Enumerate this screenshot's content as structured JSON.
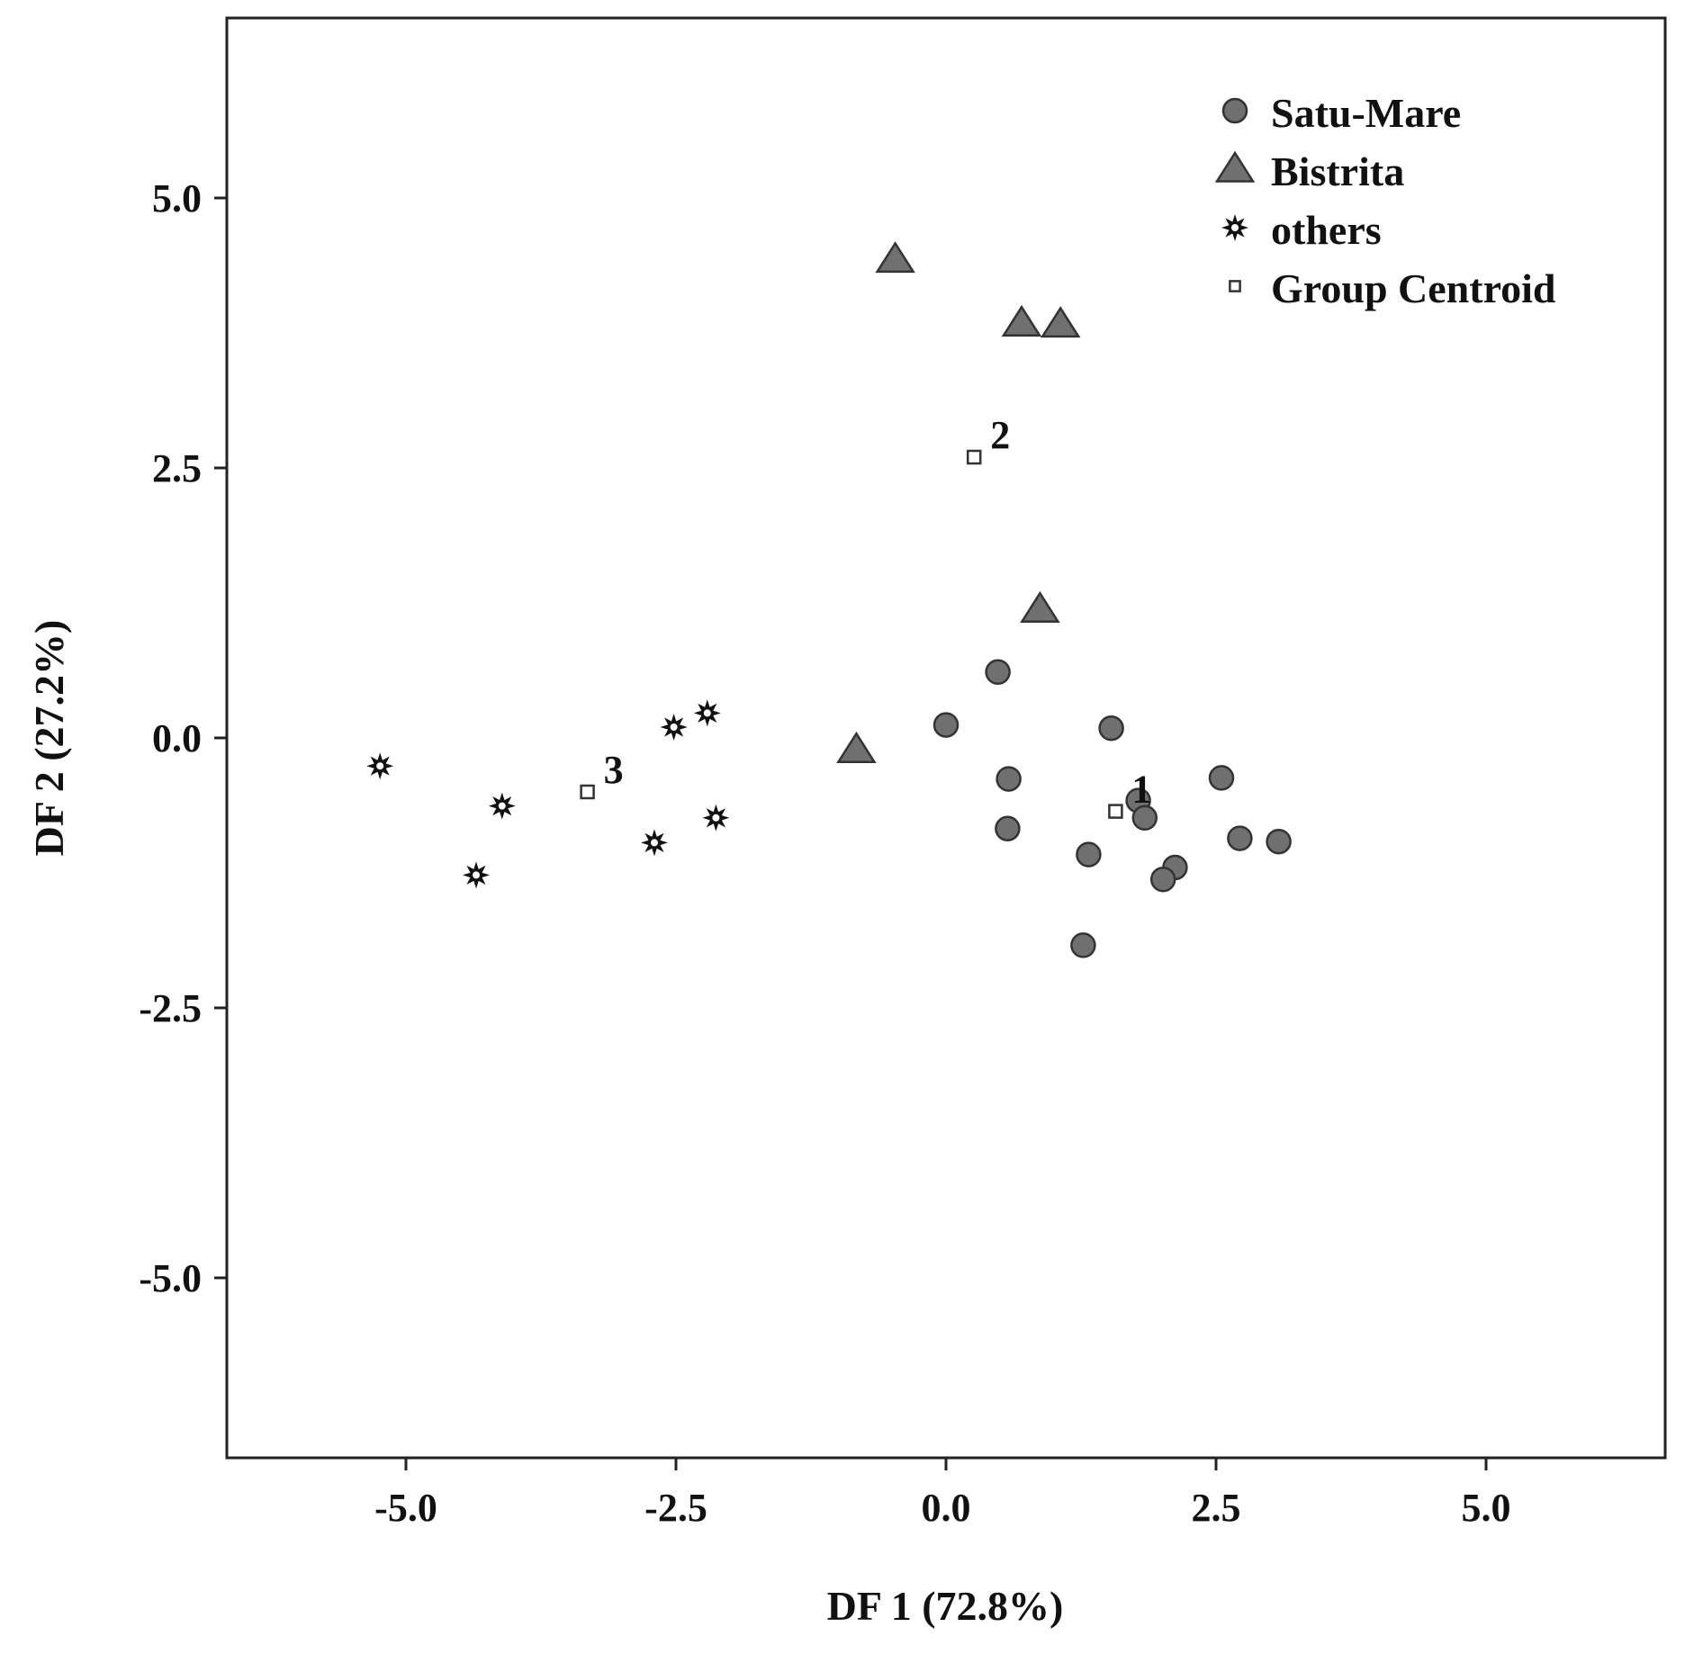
{
  "chart_data": {
    "type": "scatter",
    "title": "",
    "xlabel": "DF 1 (72.8%)",
    "ylabel": "DF 2 (27.2%)",
    "xlim": [
      -6.7,
      6.7
    ],
    "ylim": [
      -6.7,
      6.7
    ],
    "x_ticks": [
      -5.0,
      -2.5,
      0.0,
      2.5,
      5.0
    ],
    "y_ticks": [
      5.0,
      2.5,
      0.0,
      -2.5,
      -5.0
    ],
    "x_tick_labels": [
      "-5.0",
      "-2.5",
      "0.0",
      "2.5",
      "5.0"
    ],
    "y_tick_labels": [
      "5.0",
      "2.5",
      "0.0",
      "-2.5",
      "-5.0"
    ],
    "grid": false,
    "legend_position": "top-right",
    "series": [
      {
        "name": "Satu-Mare",
        "marker": "circle",
        "color": "#707070",
        "points": [
          [
            0.48,
            0.61
          ],
          [
            0.0,
            0.12
          ],
          [
            1.53,
            0.09
          ],
          [
            0.58,
            -0.38
          ],
          [
            2.55,
            -0.37
          ],
          [
            1.78,
            -0.58
          ],
          [
            1.84,
            -0.74
          ],
          [
            0.57,
            -0.84
          ],
          [
            1.32,
            -1.08
          ],
          [
            2.72,
            -0.93
          ],
          [
            3.08,
            -0.96
          ],
          [
            2.12,
            -1.2
          ],
          [
            2.01,
            -1.31
          ],
          [
            1.27,
            -1.92
          ]
        ]
      },
      {
        "name": "Bistrita",
        "marker": "triangle",
        "color": "#707070",
        "points": [
          [
            -0.47,
            4.43
          ],
          [
            0.7,
            3.84
          ],
          [
            1.06,
            3.83
          ],
          [
            0.87,
            1.19
          ],
          [
            -0.83,
            -0.11
          ]
        ]
      },
      {
        "name": "others",
        "marker": "star",
        "color": "#111111",
        "points": [
          [
            -2.21,
            0.23
          ],
          [
            -2.52,
            0.1
          ],
          [
            -5.24,
            -0.26
          ],
          [
            -4.11,
            -0.63
          ],
          [
            -2.13,
            -0.74
          ],
          [
            -2.7,
            -0.97
          ],
          [
            -4.35,
            -1.27
          ]
        ]
      },
      {
        "name": "Group Centroid",
        "marker": "square",
        "color": "#ffffff",
        "points": [
          [
            1.57,
            -0.68
          ],
          [
            0.26,
            2.6
          ],
          [
            -3.32,
            -0.5
          ]
        ],
        "labels": [
          "1",
          "2",
          "3"
        ]
      }
    ]
  }
}
